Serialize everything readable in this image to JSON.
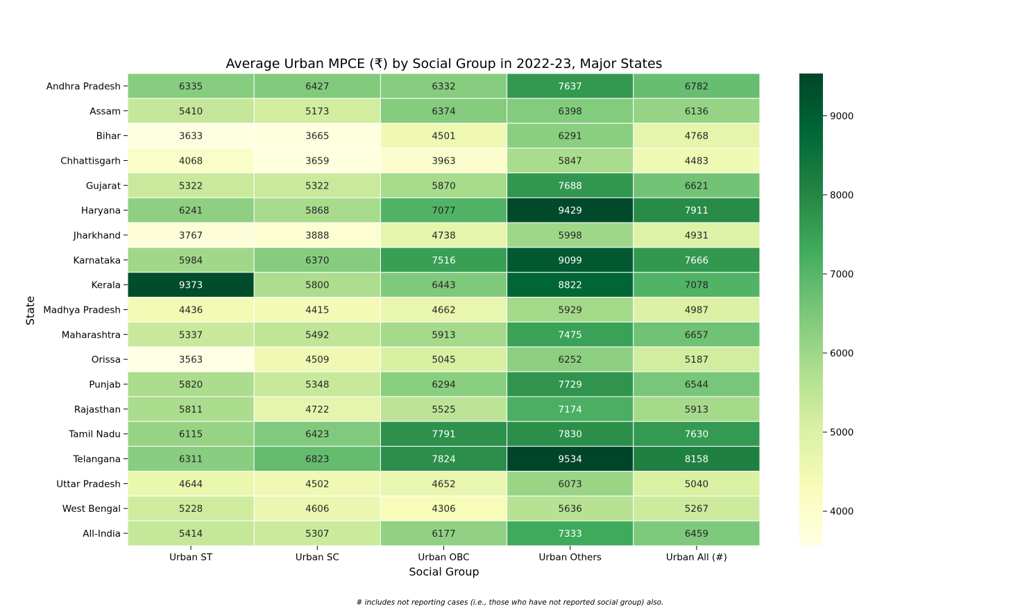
{
  "chart_data": {
    "type": "heatmap",
    "title": "Average Urban MPCE (₹) by Social Group in 2022-23, Major States",
    "xlabel": "Social Group",
    "ylabel": "State",
    "columns": [
      "Urban ST",
      "Urban SC",
      "Urban OBC",
      "Urban Others",
      "Urban All (#)"
    ],
    "rows": [
      "Andhra Pradesh",
      "Assam",
      "Bihar",
      "Chhattisgarh",
      "Gujarat",
      "Haryana",
      "Jharkhand",
      "Karnataka",
      "Kerala",
      "Madhya Pradesh",
      "Maharashtra",
      "Orissa",
      "Punjab",
      "Rajasthan",
      "Tamil Nadu",
      "Telangana",
      "Uttar Pradesh",
      "West Bengal",
      "All-India"
    ],
    "values": [
      [
        6335,
        6427,
        6332,
        7637,
        6782
      ],
      [
        5410,
        5173,
        6374,
        6398,
        6136
      ],
      [
        3633,
        3665,
        4501,
        6291,
        4768
      ],
      [
        4068,
        3659,
        3963,
        5847,
        4483
      ],
      [
        5322,
        5322,
        5870,
        7688,
        6621
      ],
      [
        6241,
        5868,
        7077,
        9429,
        7911
      ],
      [
        3767,
        3888,
        4738,
        5998,
        4931
      ],
      [
        5984,
        6370,
        7516,
        9099,
        7666
      ],
      [
        9373,
        5800,
        6443,
        8822,
        7078
      ],
      [
        4436,
        4415,
        4662,
        5929,
        4987
      ],
      [
        5337,
        5492,
        5913,
        7475,
        6657
      ],
      [
        3563,
        4509,
        5045,
        6252,
        5187
      ],
      [
        5820,
        5348,
        6294,
        7729,
        6544
      ],
      [
        5811,
        4722,
        5525,
        7174,
        5913
      ],
      [
        6115,
        6423,
        7791,
        7830,
        7630
      ],
      [
        6311,
        6823,
        7824,
        9534,
        8158
      ],
      [
        4644,
        4502,
        4652,
        6073,
        5040
      ],
      [
        5228,
        4606,
        4306,
        5636,
        5267
      ],
      [
        5414,
        5307,
        6177,
        7333,
        6459
      ]
    ],
    "colormap": "YlGn",
    "vmin": 3563,
    "vmax": 9534,
    "colorbar_ticks": [
      4000,
      5000,
      6000,
      7000,
      8000,
      9000
    ],
    "footnote": "# includes not reporting cases (i.e., those who have not reported social group) also."
  }
}
